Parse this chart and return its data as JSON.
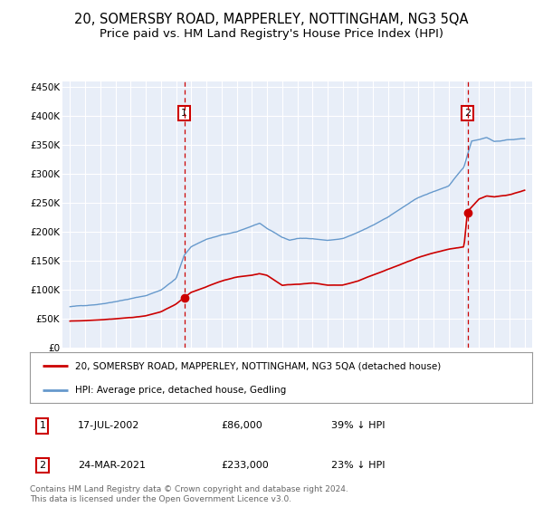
{
  "title": "20, SOMERSBY ROAD, MAPPERLEY, NOTTINGHAM, NG3 5QA",
  "subtitle": "Price paid vs. HM Land Registry's House Price Index (HPI)",
  "title_fontsize": 10.5,
  "subtitle_fontsize": 9.5,
  "background_color": "#e8eef8",
  "red_line_label": "20, SOMERSBY ROAD, MAPPERLEY, NOTTINGHAM, NG3 5QA (detached house)",
  "blue_line_label": "HPI: Average price, detached house, Gedling",
  "footer": "Contains HM Land Registry data © Crown copyright and database right 2024.\nThis data is licensed under the Open Government Licence v3.0.",
  "marker1_date": "17-JUL-2002",
  "marker1_price": 86000,
  "marker1_hpi": "39% ↓ HPI",
  "marker1_x": 2002.54,
  "marker2_date": "24-MAR-2021",
  "marker2_price": 233000,
  "marker2_hpi": "23% ↓ HPI",
  "marker2_x": 2021.23,
  "ylim": [
    0,
    460000
  ],
  "xlim": [
    1994.5,
    2025.5
  ],
  "yticks": [
    0,
    50000,
    100000,
    150000,
    200000,
    250000,
    300000,
    350000,
    400000,
    450000
  ],
  "ytick_labels": [
    "£0",
    "£50K",
    "£100K",
    "£150K",
    "£200K",
    "£250K",
    "£300K",
    "£350K",
    "£400K",
    "£450K"
  ],
  "xticks": [
    1995,
    1996,
    1997,
    1998,
    1999,
    2000,
    2001,
    2002,
    2003,
    2004,
    2005,
    2006,
    2007,
    2008,
    2009,
    2010,
    2011,
    2012,
    2013,
    2014,
    2015,
    2016,
    2017,
    2018,
    2019,
    2020,
    2021,
    2022,
    2023,
    2024,
    2025
  ],
  "red_color": "#cc0000",
  "blue_color": "#6699cc",
  "dashed_color": "#cc0000",
  "grid_color": "#ffffff",
  "hpi_anchors_x": [
    1995,
    1996,
    1997,
    1998,
    1999,
    2000,
    2001,
    2002,
    2002.54,
    2003,
    2004,
    2005,
    2006,
    2007,
    2007.5,
    2008,
    2008.5,
    2009,
    2009.5,
    2010,
    2011,
    2012,
    2013,
    2014,
    2015,
    2016,
    2017,
    2018,
    2019,
    2020,
    2021,
    2021.5,
    2022,
    2022.5,
    2023,
    2024,
    2025
  ],
  "hpi_anchors_y": [
    70000,
    72000,
    75000,
    80000,
    85000,
    90000,
    100000,
    120000,
    160000,
    175000,
    188000,
    195000,
    200000,
    210000,
    215000,
    205000,
    198000,
    190000,
    185000,
    188000,
    188000,
    185000,
    188000,
    198000,
    210000,
    225000,
    242000,
    258000,
    268000,
    278000,
    310000,
    355000,
    358000,
    362000,
    355000,
    358000,
    360000
  ],
  "red_anchors_x": [
    1995,
    1996,
    1997,
    1998,
    1999,
    2000,
    2001,
    2002,
    2002.54,
    2003,
    2004,
    2005,
    2006,
    2007,
    2007.5,
    2008,
    2009,
    2010,
    2011,
    2012,
    2013,
    2014,
    2015,
    2016,
    2017,
    2018,
    2019,
    2020,
    2021,
    2021.23,
    2022,
    2022.5,
    2023,
    2024,
    2025
  ],
  "red_anchors_y": [
    45000,
    46000,
    48000,
    50000,
    52000,
    55000,
    62000,
    75000,
    86000,
    95000,
    105000,
    115000,
    122000,
    125000,
    128000,
    125000,
    108000,
    110000,
    112000,
    108000,
    108000,
    115000,
    125000,
    135000,
    145000,
    155000,
    162000,
    168000,
    172000,
    233000,
    255000,
    260000,
    258000,
    262000,
    270000
  ]
}
